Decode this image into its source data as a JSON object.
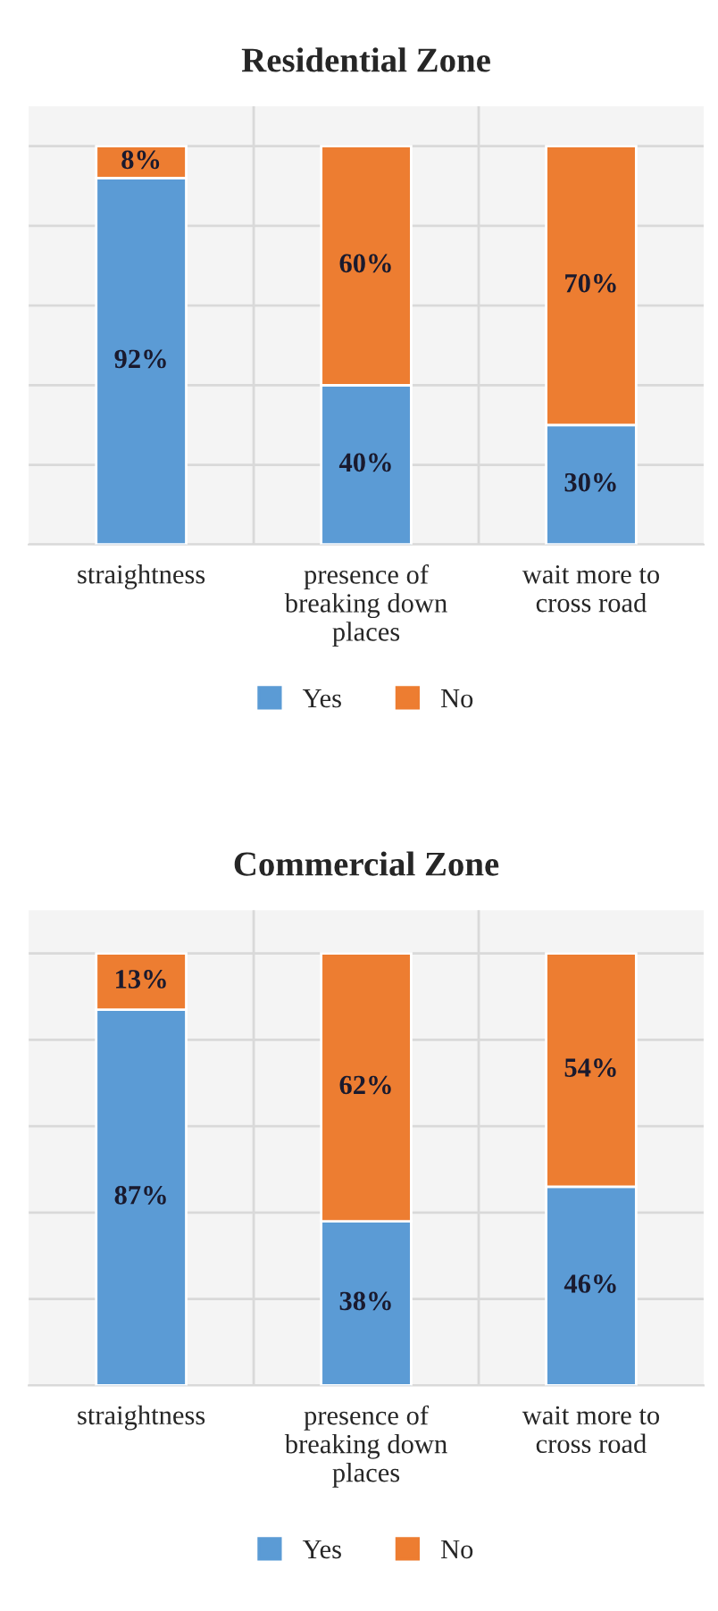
{
  "chart_data": [
    {
      "type": "bar",
      "title": "Residential Zone",
      "categories": [
        "straightness",
        "presence of\nbreaking down\nplaces",
        "wait more to\ncross road"
      ],
      "stacked": true,
      "grid": true,
      "legend": "bottom",
      "tick_labels": "x",
      "series": [
        {
          "name": "Yes",
          "color": "#5b9bd5",
          "values": [
            92,
            40,
            30
          ],
          "value_labels": [
            "92%",
            "40%",
            "30%"
          ]
        },
        {
          "name": "No",
          "color": "#ed7d31",
          "values": [
            8,
            60,
            70
          ],
          "value_labels": [
            "8%",
            "60%",
            "70%"
          ]
        }
      ]
    },
    {
      "type": "bar",
      "title": "Commercial Zone",
      "categories": [
        "straightness",
        "presence of\nbreaking down\nplaces",
        "wait more to\ncross road"
      ],
      "stacked": true,
      "grid": true,
      "legend": "bottom",
      "tick_labels": "x",
      "series": [
        {
          "name": "Yes",
          "color": "#5b9bd5",
          "values": [
            87,
            38,
            46
          ],
          "value_labels": [
            "87%",
            "38%",
            "46%"
          ]
        },
        {
          "name": "No",
          "color": "#ed7d31",
          "values": [
            13,
            62,
            54
          ],
          "value_labels": [
            "13%",
            "62%",
            "54%"
          ]
        }
      ]
    }
  ]
}
